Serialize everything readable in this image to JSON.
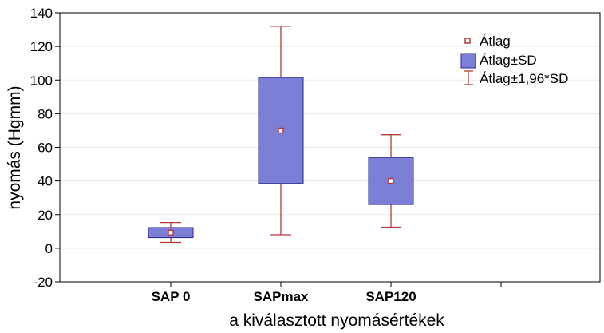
{
  "chart_data": {
    "type": "box",
    "xlabel": "a kiválasztott nyomásértékek",
    "ylabel": "nyomás (Hgmm)",
    "ylim": [
      -20,
      140
    ],
    "yticks": [
      -20,
      0,
      20,
      40,
      60,
      80,
      100,
      120,
      140
    ],
    "grid": true,
    "legend_position": "top-right",
    "legend": [
      {
        "label": "Átlag",
        "marker": "square-point"
      },
      {
        "label": "Átlag±SD",
        "marker": "box"
      },
      {
        "label": "Átlag±1,96*SD",
        "marker": "whisker"
      }
    ],
    "categories": [
      "SAP 0",
      "SAPmax",
      "SAP120"
    ],
    "groups": [
      {
        "category": "SAP 0",
        "mean": 9.3,
        "sd_low": 6.3,
        "sd_high": 12.3,
        "whisker_low": 3.5,
        "whisker_high": 15.3
      },
      {
        "category": "SAPmax",
        "mean": 70,
        "sd_low": 38.5,
        "sd_high": 101.5,
        "whisker_low": 8,
        "whisker_high": 132
      },
      {
        "category": "SAP120",
        "mean": 40,
        "sd_low": 26,
        "sd_high": 54,
        "whisker_low": 12.5,
        "whisker_high": 67.5
      }
    ],
    "colors": {
      "box_fill": "#7b7fd6",
      "box_stroke": "#2a2a8c",
      "whisker": "#b03a3a",
      "mean_fill": "#ffffff",
      "mean_stroke": "#b03a3a",
      "grid": "#e8e8e8"
    }
  }
}
